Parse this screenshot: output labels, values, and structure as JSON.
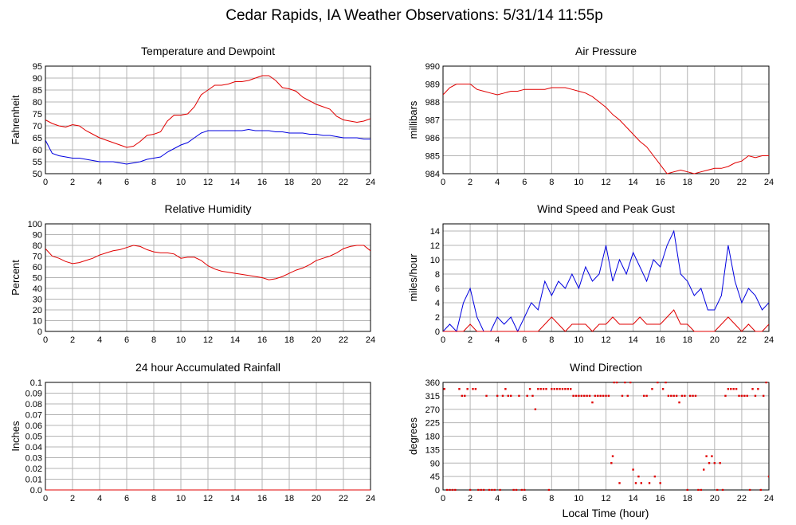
{
  "title": "Cedar Rapids, IA Weather Observations: 5/31/14 11:55p",
  "xaxis_title": "Local Time (hour)",
  "colors": {
    "red": "#e00000",
    "blue": "#0000e0",
    "grid": "#b4b4b4"
  },
  "chart_data": [
    {
      "type": "line",
      "title": "Temperature and Dewpoint",
      "ylabel": "Fahrenheit",
      "xlim": [
        0,
        24
      ],
      "ylim": [
        50,
        95
      ],
      "x_ticks": [
        "0",
        "2",
        "4",
        "6",
        "8",
        "10",
        "12",
        "14",
        "16",
        "18",
        "20",
        "22",
        "24"
      ],
      "y_ticks": [
        "95",
        "90",
        "85",
        "80",
        "75",
        "70",
        "65",
        "60",
        "55",
        "50"
      ],
      "grid": true,
      "series": [
        {
          "color": "red",
          "x": [
            0,
            0.5,
            1,
            1.5,
            2,
            2.5,
            3,
            3.5,
            4,
            4.5,
            5,
            5.5,
            6,
            6.5,
            7,
            7.5,
            8,
            8.5,
            9,
            9.5,
            10,
            10.5,
            11,
            11.5,
            12,
            12.5,
            13,
            13.5,
            14,
            14.5,
            15,
            15.5,
            16,
            16.5,
            17,
            17.5,
            18,
            18.5,
            19,
            19.5,
            20,
            20.5,
            21,
            21.5,
            22,
            22.5,
            23,
            23.5,
            24
          ],
          "values": [
            72.5,
            71,
            70,
            69.5,
            70.5,
            70,
            68,
            66.5,
            65,
            64,
            63,
            62,
            61,
            61.5,
            63.5,
            66,
            66.5,
            67.5,
            72,
            74.5,
            74.5,
            75,
            78,
            83,
            85,
            87,
            87,
            87.5,
            88.5,
            88.5,
            89,
            90,
            91,
            91,
            89,
            86,
            85.5,
            84.5,
            82,
            80.5,
            79,
            78,
            77,
            74,
            72.5,
            72,
            71.5,
            72,
            73
          ]
        },
        {
          "color": "blue",
          "x": [
            0,
            0.5,
            1,
            1.5,
            2,
            2.5,
            3,
            3.5,
            4,
            4.5,
            5,
            5.5,
            6,
            6.5,
            7,
            7.5,
            8,
            8.5,
            9,
            9.5,
            10,
            10.5,
            11,
            11.5,
            12,
            12.5,
            13,
            13.5,
            14,
            14.5,
            15,
            15.5,
            16,
            16.5,
            17,
            17.5,
            18,
            18.5,
            19,
            19.5,
            20,
            20.5,
            21,
            21.5,
            22,
            22.5,
            23,
            23.5,
            24
          ],
          "values": [
            64,
            58.5,
            57.5,
            57,
            56.5,
            56.5,
            56,
            55.5,
            55,
            55,
            55,
            54.5,
            54,
            54.5,
            55,
            56,
            56.5,
            57,
            59,
            60.5,
            62,
            63,
            65,
            67,
            68,
            68,
            68,
            68,
            68,
            68,
            68.5,
            68,
            68,
            68,
            67.5,
            67.5,
            67,
            67,
            67,
            66.5,
            66.5,
            66,
            66,
            65.5,
            65,
            65,
            65,
            64.5,
            64.5
          ]
        }
      ]
    },
    {
      "type": "line",
      "title": "Air Pressure",
      "ylabel": "millibars",
      "xlim": [
        0,
        24
      ],
      "ylim": [
        984,
        990
      ],
      "x_ticks": [
        "0",
        "2",
        "4",
        "6",
        "8",
        "10",
        "12",
        "14",
        "16",
        "18",
        "20",
        "22",
        "24"
      ],
      "y_ticks": [
        "990",
        "989",
        "988",
        "987",
        "986",
        "985",
        "984"
      ],
      "grid": true,
      "series": [
        {
          "color": "red",
          "x": [
            0,
            0.5,
            1,
            1.5,
            2,
            2.5,
            3,
            3.5,
            4,
            4.5,
            5,
            5.5,
            6,
            6.5,
            7,
            7.5,
            8,
            8.5,
            9,
            9.5,
            10,
            10.5,
            11,
            11.5,
            12,
            12.5,
            13,
            13.5,
            14,
            14.5,
            15,
            15.5,
            16,
            16.5,
            17,
            17.5,
            18,
            18.5,
            19,
            19.5,
            20,
            20.5,
            21,
            21.5,
            22,
            22.5,
            23,
            23.5,
            24
          ],
          "values": [
            988.4,
            988.8,
            989.0,
            989.0,
            989.0,
            988.7,
            988.6,
            988.5,
            988.4,
            988.5,
            988.6,
            988.6,
            988.7,
            988.7,
            988.7,
            988.7,
            988.8,
            988.8,
            988.8,
            988.7,
            988.6,
            988.5,
            988.3,
            988.0,
            987.7,
            987.3,
            987.0,
            986.6,
            986.2,
            985.8,
            985.5,
            985.0,
            984.5,
            984.0,
            984.1,
            984.2,
            984.1,
            984.0,
            984.1,
            984.2,
            984.3,
            984.3,
            984.4,
            984.6,
            984.7,
            985.0,
            984.9,
            985.0,
            985.0
          ]
        }
      ]
    },
    {
      "type": "line",
      "title": "Relative Humidity",
      "ylabel": "Percent",
      "xlim": [
        0,
        24
      ],
      "ylim": [
        0,
        100
      ],
      "x_ticks": [
        "0",
        "2",
        "4",
        "6",
        "8",
        "10",
        "12",
        "14",
        "16",
        "18",
        "20",
        "22",
        "24"
      ],
      "y_ticks": [
        "100",
        "90",
        "80",
        "70",
        "60",
        "50",
        "40",
        "30",
        "20",
        "10",
        "0"
      ],
      "grid": true,
      "series": [
        {
          "color": "red",
          "x": [
            0,
            0.5,
            1,
            1.5,
            2,
            2.5,
            3,
            3.5,
            4,
            4.5,
            5,
            5.5,
            6,
            6.5,
            7,
            7.5,
            8,
            8.5,
            9,
            9.5,
            10,
            10.5,
            11,
            11.5,
            12,
            12.5,
            13,
            13.5,
            14,
            14.5,
            15,
            15.5,
            16,
            16.5,
            17,
            17.5,
            18,
            18.5,
            19,
            19.5,
            20,
            20.5,
            21,
            21.5,
            22,
            22.5,
            23,
            23.5,
            24
          ],
          "values": [
            77,
            70,
            68,
            65,
            63,
            64,
            66,
            68,
            71,
            73,
            75,
            76,
            78,
            80,
            79,
            76,
            74,
            73,
            73,
            72,
            68,
            69,
            69,
            66,
            61,
            58,
            56,
            55,
            54,
            53,
            52,
            51,
            50,
            48,
            49,
            51,
            54,
            57,
            59,
            62,
            66,
            68,
            70,
            73,
            77,
            79,
            80,
            80,
            75
          ]
        }
      ]
    },
    {
      "type": "line",
      "title": "Wind Speed and Peak Gust",
      "ylabel": "miles/hour",
      "xlim": [
        0,
        24
      ],
      "ylim": [
        0,
        15
      ],
      "x_ticks": [
        "0",
        "2",
        "4",
        "6",
        "8",
        "10",
        "12",
        "14",
        "16",
        "18",
        "20",
        "22",
        "24"
      ],
      "y_ticks": [
        "14",
        "12",
        "10",
        "8",
        "6",
        "4",
        "2",
        "0"
      ],
      "grid": true,
      "series": [
        {
          "color": "blue",
          "x": [
            0,
            0.5,
            1,
            1.5,
            2,
            2.5,
            3,
            3.5,
            4,
            4.5,
            5,
            5.5,
            6,
            6.5,
            7,
            7.5,
            8,
            8.5,
            9,
            9.5,
            10,
            10.5,
            11,
            11.5,
            12,
            12.5,
            13,
            13.5,
            14,
            14.5,
            15,
            15.5,
            16,
            16.5,
            17,
            17.5,
            18,
            18.5,
            19,
            19.5,
            20,
            20.5,
            21,
            21.5,
            22,
            22.5,
            23,
            23.5,
            24
          ],
          "values": [
            0,
            1,
            0,
            4,
            6,
            2,
            0,
            0,
            2,
            1,
            2,
            0,
            2,
            4,
            3,
            7,
            5,
            7,
            6,
            8,
            6,
            9,
            7,
            8,
            12,
            7,
            10,
            8,
            11,
            9,
            7,
            10,
            9,
            12,
            14,
            8,
            7,
            5,
            6,
            3,
            3,
            5,
            12,
            7,
            4,
            6,
            5,
            3,
            4
          ]
        },
        {
          "color": "red",
          "x": [
            0,
            0.5,
            1,
            1.5,
            2,
            2.5,
            3,
            3.5,
            4,
            4.5,
            5,
            5.5,
            6,
            6.5,
            7,
            7.5,
            8,
            8.5,
            9,
            9.5,
            10,
            10.5,
            11,
            11.5,
            12,
            12.5,
            13,
            13.5,
            14,
            14.5,
            15,
            15.5,
            16,
            16.5,
            17,
            17.5,
            18,
            18.5,
            19,
            19.5,
            20,
            20.5,
            21,
            21.5,
            22,
            22.5,
            23,
            23.5,
            24
          ],
          "values": [
            0,
            0,
            0,
            0,
            1,
            0,
            0,
            0,
            0,
            0,
            0,
            0,
            0,
            0,
            0,
            1,
            2,
            1,
            0,
            1,
            1,
            1,
            0,
            1,
            1,
            2,
            1,
            1,
            1,
            2,
            1,
            1,
            1,
            2,
            3,
            1,
            1,
            0,
            0,
            0,
            0,
            1,
            2,
            1,
            0,
            1,
            0,
            0,
            1
          ]
        }
      ]
    },
    {
      "type": "line",
      "title": "24 hour Accumulated Rainfall",
      "ylabel": "Inches",
      "xlim": [
        0,
        24
      ],
      "ylim": [
        0,
        0.1
      ],
      "x_ticks": [
        "0",
        "2",
        "4",
        "6",
        "8",
        "10",
        "12",
        "14",
        "16",
        "18",
        "20",
        "22",
        "24"
      ],
      "y_ticks": [
        "0.1",
        "0.09",
        "0.08",
        "0.07",
        "0.06",
        "0.05",
        "0.04",
        "0.03",
        "0.02",
        "0.01",
        "0.0"
      ],
      "grid": true,
      "series": [
        {
          "color": "red",
          "x": [
            0,
            24
          ],
          "values": [
            0,
            0
          ]
        }
      ]
    },
    {
      "type": "scatter",
      "title": "Wind Direction",
      "ylabel": "degrees",
      "xlim": [
        0,
        24
      ],
      "ylim": [
        0,
        360
      ],
      "x_ticks": [
        "0",
        "2",
        "4",
        "6",
        "8",
        "10",
        "12",
        "14",
        "16",
        "18",
        "20",
        "22",
        "24"
      ],
      "y_ticks": [
        "360",
        "315",
        "270",
        "225",
        "180",
        "135",
        "90",
        "45",
        "0"
      ],
      "grid": true,
      "series": [
        {
          "color": "red",
          "x": [
            0.1,
            0.3,
            0.5,
            0.7,
            0.9,
            1.2,
            1.4,
            1.6,
            1.8,
            2.0,
            2.2,
            2.4,
            2.6,
            2.8,
            3.0,
            3.2,
            3.4,
            3.6,
            3.8,
            4.0,
            4.2,
            4.4,
            4.6,
            4.8,
            5.0,
            5.2,
            5.4,
            5.6,
            5.8,
            6.0,
            6.2,
            6.4,
            6.6,
            6.8,
            7.0,
            7.2,
            7.4,
            7.6,
            7.8,
            8.0,
            8.2,
            8.4,
            8.6,
            8.8,
            9.0,
            9.2,
            9.4,
            9.6,
            9.8,
            10.0,
            10.2,
            10.4,
            10.6,
            10.8,
            11.0,
            11.2,
            11.4,
            11.6,
            11.8,
            12.0,
            12.2,
            12.4,
            12.5,
            12.6,
            12.8,
            13.0,
            13.2,
            13.4,
            13.6,
            13.8,
            14.0,
            14.2,
            14.4,
            14.6,
            14.8,
            15.0,
            15.2,
            15.4,
            15.6,
            15.8,
            16.0,
            16.2,
            16.4,
            16.6,
            16.8,
            17.0,
            17.2,
            17.4,
            17.6,
            17.8,
            18.0,
            18.2,
            18.4,
            18.6,
            18.8,
            19.0,
            19.2,
            19.4,
            19.6,
            19.8,
            20.0,
            20.2,
            20.4,
            20.6,
            20.8,
            21.0,
            21.2,
            21.4,
            21.6,
            21.8,
            22.0,
            22.2,
            22.4,
            22.6,
            22.8,
            23.0,
            23.2,
            23.4,
            23.6,
            23.8,
            24.0
          ],
          "values": [
            338,
            0,
            0,
            0,
            0,
            338,
            315,
            315,
            338,
            0,
            338,
            338,
            0,
            0,
            0,
            315,
            0,
            0,
            0,
            315,
            0,
            315,
            338,
            315,
            315,
            0,
            0,
            315,
            0,
            0,
            315,
            338,
            315,
            270,
            338,
            338,
            338,
            338,
            0,
            338,
            338,
            338,
            338,
            338,
            338,
            338,
            338,
            315,
            315,
            315,
            315,
            315,
            315,
            315,
            293,
            315,
            315,
            315,
            315,
            315,
            315,
            90,
            113,
            360,
            360,
            23,
            315,
            360,
            315,
            360,
            68,
            23,
            45,
            23,
            315,
            315,
            23,
            338,
            45,
            360,
            23,
            338,
            360,
            315,
            315,
            315,
            315,
            293,
            315,
            315,
            0,
            315,
            315,
            315,
            0,
            0,
            68,
            113,
            90,
            113,
            90,
            0,
            90,
            0,
            315,
            338,
            338,
            338,
            338,
            315,
            315,
            315,
            315,
            0,
            338,
            315,
            338,
            0,
            315,
            360,
            45
          ]
        }
      ]
    }
  ]
}
